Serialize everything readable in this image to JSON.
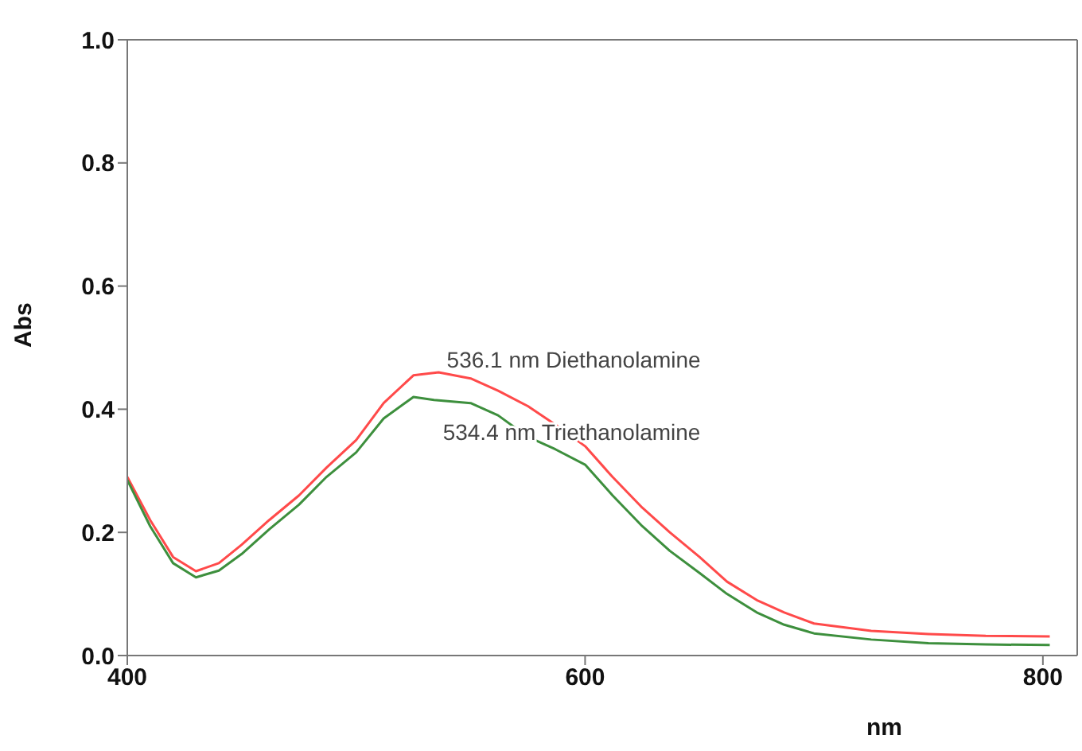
{
  "chart_data": {
    "type": "line",
    "xlabel": "nm",
    "ylabel": "Abs",
    "xlim": [
      400,
      815
    ],
    "xticks": [
      400,
      600,
      800
    ],
    "ylim": [
      0,
      1
    ],
    "yticks": [
      {
        "value": 0,
        "label": "0.0"
      },
      {
        "value": 0.2,
        "label": "0.2"
      },
      {
        "value": 0.4,
        "label": "0.4"
      },
      {
        "value": 0.6,
        "label": "0.6"
      },
      {
        "value": 0.8,
        "label": "0.8"
      },
      {
        "value": 1,
        "label": "1.0"
      }
    ],
    "legend": false,
    "marker": "none",
    "line_style": "solid",
    "series": [
      {
        "color": "#ff4a4a",
        "x": [
          400,
          410,
          420,
          430,
          440,
          450,
          462,
          475,
          487,
          500,
          512,
          525,
          536,
          550,
          562,
          575,
          587,
          600,
          612,
          625,
          637,
          650,
          662,
          675,
          687,
          700,
          725,
          750,
          775,
          803
        ],
        "values": [
          0.29,
          0.22,
          0.16,
          0.137,
          0.15,
          0.18,
          0.22,
          0.26,
          0.305,
          0.35,
          0.41,
          0.455,
          0.46,
          0.45,
          0.43,
          0.405,
          0.375,
          0.34,
          0.29,
          0.24,
          0.2,
          0.16,
          0.12,
          0.09,
          0.07,
          0.052,
          0.04,
          0.035,
          0.032,
          0.031
        ]
      },
      {
        "color": "#3d8f3d",
        "x": [
          400,
          410,
          420,
          430,
          440,
          450,
          462,
          475,
          487,
          500,
          512,
          525,
          534,
          550,
          562,
          575,
          587,
          600,
          612,
          625,
          637,
          650,
          662,
          675,
          687,
          700,
          725,
          750,
          775,
          803
        ],
        "values": [
          0.285,
          0.21,
          0.15,
          0.127,
          0.138,
          0.165,
          0.205,
          0.245,
          0.29,
          0.33,
          0.385,
          0.42,
          0.415,
          0.41,
          0.39,
          0.355,
          0.335,
          0.31,
          0.26,
          0.21,
          0.17,
          0.134,
          0.1,
          0.07,
          0.05,
          0.036,
          0.026,
          0.02,
          0.018,
          0.017
        ]
      }
    ],
    "annotations": [
      {
        "text": "536.1 nm Diethanolamine",
        "x": 536.1,
        "y": 0.46
      },
      {
        "text": "534.4 nm Triethanolamine",
        "x": 534.4,
        "y": 0.415
      }
    ]
  }
}
